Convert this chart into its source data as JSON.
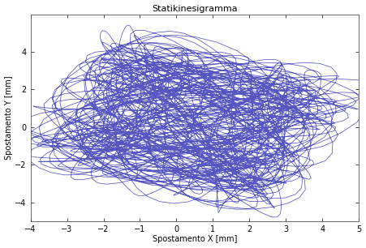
{
  "title": "Statikinesigramma",
  "xlabel": "Spostamento X [mm]",
  "ylabel": "Spostamento Y [mm]",
  "xlim": [
    -4,
    5
  ],
  "ylim": [
    -5,
    6
  ],
  "xticks": [
    -4,
    -3,
    -2,
    -1,
    0,
    1,
    2,
    3,
    4,
    5
  ],
  "yticks": [
    -4,
    -2,
    0,
    2,
    4
  ],
  "line_color": "#4444bb",
  "line_width": 0.55,
  "bg_color": "#ffffff",
  "seed": 7,
  "n_points": 4000,
  "title_fontsize": 8,
  "label_fontsize": 7,
  "tick_fontsize": 7
}
